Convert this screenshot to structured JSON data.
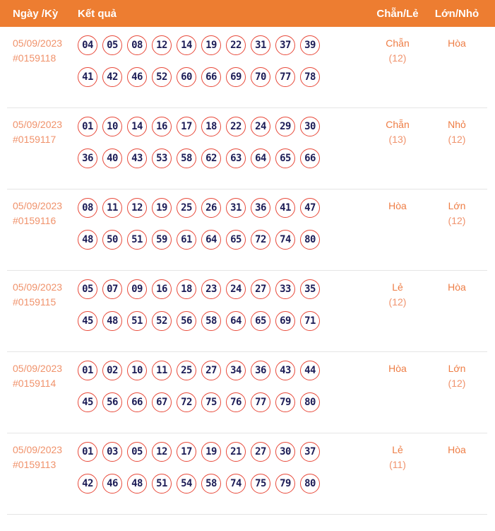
{
  "table": {
    "columns": [
      {
        "label": "Ngày /Kỳ"
      },
      {
        "label": "Kết quả"
      },
      {
        "label": "Chẵn/Lẻ"
      },
      {
        "label": "Lớn/Nhỏ"
      }
    ],
    "rows": [
      {
        "date": "05/09/2023",
        "draw_id": "#0159118",
        "numbers_row1": [
          "04",
          "05",
          "08",
          "12",
          "14",
          "19",
          "22",
          "31",
          "37",
          "39"
        ],
        "numbers_row2": [
          "41",
          "42",
          "46",
          "52",
          "60",
          "66",
          "69",
          "70",
          "77",
          "78"
        ],
        "chan_le": {
          "value": "Chẵn",
          "count": "(12)"
        },
        "lon_nho": {
          "value": "Hòa",
          "count": ""
        }
      },
      {
        "date": "05/09/2023",
        "draw_id": "#0159117",
        "numbers_row1": [
          "01",
          "10",
          "14",
          "16",
          "17",
          "18",
          "22",
          "24",
          "29",
          "30"
        ],
        "numbers_row2": [
          "36",
          "40",
          "43",
          "53",
          "58",
          "62",
          "63",
          "64",
          "65",
          "66"
        ],
        "chan_le": {
          "value": "Chẵn",
          "count": "(13)"
        },
        "lon_nho": {
          "value": "Nhỏ",
          "count": "(12)"
        }
      },
      {
        "date": "05/09/2023",
        "draw_id": "#0159116",
        "numbers_row1": [
          "08",
          "11",
          "12",
          "19",
          "25",
          "26",
          "31",
          "36",
          "41",
          "47"
        ],
        "numbers_row2": [
          "48",
          "50",
          "51",
          "59",
          "61",
          "64",
          "65",
          "72",
          "74",
          "80"
        ],
        "chan_le": {
          "value": "Hòa",
          "count": ""
        },
        "lon_nho": {
          "value": "Lớn",
          "count": "(12)"
        }
      },
      {
        "date": "05/09/2023",
        "draw_id": "#0159115",
        "numbers_row1": [
          "05",
          "07",
          "09",
          "16",
          "18",
          "23",
          "24",
          "27",
          "33",
          "35"
        ],
        "numbers_row2": [
          "45",
          "48",
          "51",
          "52",
          "56",
          "58",
          "64",
          "65",
          "69",
          "71"
        ],
        "chan_le": {
          "value": "Lẻ",
          "count": "(12)"
        },
        "lon_nho": {
          "value": "Hòa",
          "count": ""
        }
      },
      {
        "date": "05/09/2023",
        "draw_id": "#0159114",
        "numbers_row1": [
          "01",
          "02",
          "10",
          "11",
          "25",
          "27",
          "34",
          "36",
          "43",
          "44"
        ],
        "numbers_row2": [
          "45",
          "56",
          "66",
          "67",
          "72",
          "75",
          "76",
          "77",
          "79",
          "80"
        ],
        "chan_le": {
          "value": "Hòa",
          "count": ""
        },
        "lon_nho": {
          "value": "Lớn",
          "count": "(12)"
        }
      },
      {
        "date": "05/09/2023",
        "draw_id": "#0159113",
        "numbers_row1": [
          "01",
          "03",
          "05",
          "12",
          "17",
          "19",
          "21",
          "27",
          "30",
          "37"
        ],
        "numbers_row2": [
          "42",
          "46",
          "48",
          "51",
          "54",
          "58",
          "74",
          "75",
          "79",
          "80"
        ],
        "chan_le": {
          "value": "Lẻ",
          "count": "(11)"
        },
        "lon_nho": {
          "value": "Hòa",
          "count": ""
        }
      }
    ]
  },
  "colors": {
    "header_bg": "#ed7d31",
    "header_text": "#ffffff",
    "date_text": "#f0926b",
    "value_text": "#ee7d45",
    "count_text": "#f0936d",
    "ball_border": "#e84a3b",
    "ball_number": "#1c1c56",
    "divider": "#e5e5e5"
  }
}
